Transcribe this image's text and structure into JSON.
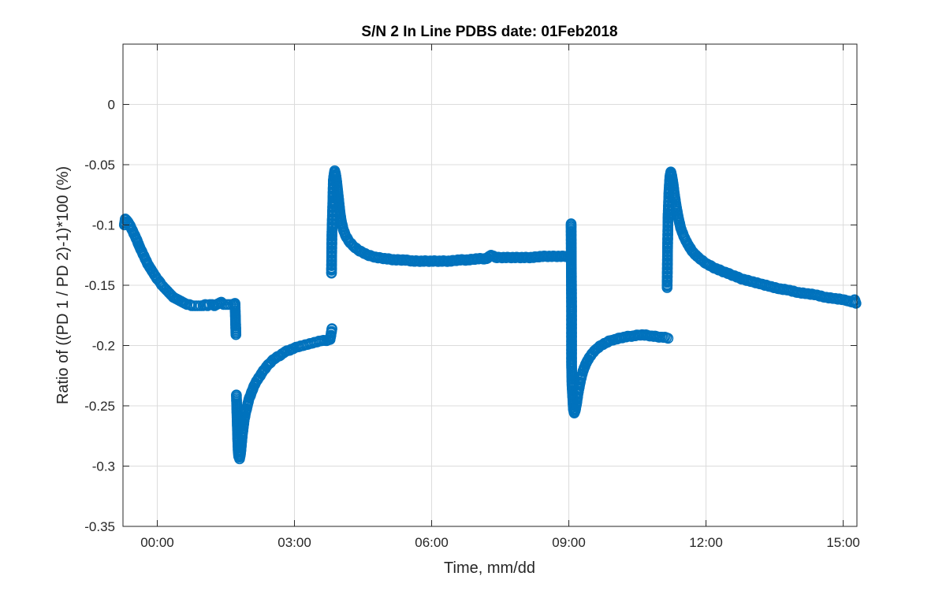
{
  "chart_data": {
    "type": "scatter",
    "title": "S/N 2 In Line PDBS date: 01Feb2018",
    "xlabel": "Time, mm/dd",
    "ylabel": "Ratio of ((PD 1 / PD 2)-1)*100 (%)",
    "xlim_hours": [
      -0.75,
      15.3
    ],
    "ylim": [
      -0.35,
      0.05
    ],
    "x_ticks": [
      {
        "hour": 0,
        "label": "00:00"
      },
      {
        "hour": 3,
        "label": "03:00"
      },
      {
        "hour": 6,
        "label": "06:00"
      },
      {
        "hour": 9,
        "label": "09:00"
      },
      {
        "hour": 12,
        "label": "12:00"
      },
      {
        "hour": 15,
        "label": "15:00"
      }
    ],
    "y_ticks": [
      0,
      -0.05,
      -0.1,
      -0.15,
      -0.2,
      -0.25,
      -0.3,
      -0.35
    ],
    "y_tick_labels": [
      "0",
      "-0.05",
      "-0.1",
      "-0.15",
      "-0.2",
      "-0.25",
      "-0.3",
      "-0.35"
    ],
    "grid": true,
    "marker": "circle-open",
    "color": "#0072BD",
    "series": [
      {
        "values": [
          [
            -0.72,
            -0.1
          ],
          [
            -0.7,
            -0.095
          ],
          [
            -0.65,
            -0.097
          ],
          [
            -0.6,
            -0.1
          ],
          [
            -0.55,
            -0.104
          ],
          [
            -0.5,
            -0.108
          ],
          [
            -0.45,
            -0.112
          ],
          [
            -0.4,
            -0.117
          ],
          [
            -0.35,
            -0.121
          ],
          [
            -0.3,
            -0.125
          ],
          [
            -0.25,
            -0.129
          ],
          [
            -0.2,
            -0.133
          ],
          [
            -0.15,
            -0.136
          ],
          [
            -0.1,
            -0.139
          ],
          [
            -0.05,
            -0.142
          ],
          [
            0,
            -0.145
          ],
          [
            0.05,
            -0.147
          ],
          [
            0.1,
            -0.15
          ],
          [
            0.15,
            -0.152
          ],
          [
            0.2,
            -0.154
          ],
          [
            0.25,
            -0.156
          ],
          [
            0.3,
            -0.158
          ],
          [
            0.35,
            -0.16
          ],
          [
            0.4,
            -0.161
          ],
          [
            0.45,
            -0.162
          ],
          [
            0.5,
            -0.163
          ],
          [
            0.55,
            -0.164
          ],
          [
            0.6,
            -0.165
          ],
          [
            0.65,
            -0.166
          ],
          [
            0.7,
            -0.166
          ],
          [
            0.75,
            -0.167
          ],
          [
            0.8,
            -0.167
          ],
          [
            0.85,
            -0.167
          ],
          [
            0.9,
            -0.167
          ],
          [
            0.95,
            -0.167
          ],
          [
            1.0,
            -0.167
          ],
          [
            1.05,
            -0.166
          ],
          [
            1.1,
            -0.167
          ],
          [
            1.15,
            -0.166
          ],
          [
            1.2,
            -0.166
          ],
          [
            1.25,
            -0.167
          ],
          [
            1.3,
            -0.166
          ],
          [
            1.35,
            -0.165
          ],
          [
            1.4,
            -0.164
          ],
          [
            1.45,
            -0.166
          ],
          [
            1.5,
            -0.166
          ],
          [
            1.55,
            -0.166
          ],
          [
            1.6,
            -0.166
          ],
          [
            1.65,
            -0.166
          ],
          [
            1.7,
            -0.165
          ],
          [
            1.72,
            -0.191
          ]
        ]
      },
      {
        "values": [
          [
            1.73,
            -0.241
          ],
          [
            1.75,
            -0.266
          ],
          [
            1.76,
            -0.279
          ],
          [
            1.77,
            -0.288
          ],
          [
            1.78,
            -0.292
          ],
          [
            1.8,
            -0.294
          ],
          [
            1.82,
            -0.29
          ],
          [
            1.84,
            -0.282
          ],
          [
            1.86,
            -0.274
          ],
          [
            1.88,
            -0.268
          ],
          [
            1.9,
            -0.262
          ],
          [
            1.93,
            -0.256
          ],
          [
            1.97,
            -0.25
          ],
          [
            2.0,
            -0.245
          ],
          [
            2.05,
            -0.24
          ],
          [
            2.1,
            -0.235
          ],
          [
            2.15,
            -0.231
          ],
          [
            2.2,
            -0.228
          ],
          [
            2.3,
            -0.222
          ],
          [
            2.4,
            -0.217
          ],
          [
            2.5,
            -0.213
          ],
          [
            2.6,
            -0.21
          ],
          [
            2.7,
            -0.208
          ],
          [
            2.8,
            -0.205
          ],
          [
            2.9,
            -0.204
          ],
          [
            3.0,
            -0.202
          ],
          [
            3.1,
            -0.201
          ],
          [
            3.2,
            -0.2
          ],
          [
            3.3,
            -0.199
          ],
          [
            3.4,
            -0.198
          ],
          [
            3.5,
            -0.197
          ],
          [
            3.6,
            -0.196
          ],
          [
            3.7,
            -0.196
          ],
          [
            3.78,
            -0.195
          ],
          [
            3.82,
            -0.186
          ]
        ]
      },
      {
        "values": [
          [
            3.81,
            -0.14
          ],
          [
            3.82,
            -0.106
          ],
          [
            3.84,
            -0.08
          ],
          [
            3.85,
            -0.063
          ],
          [
            3.87,
            -0.057
          ],
          [
            3.88,
            -0.055
          ],
          [
            3.9,
            -0.058
          ],
          [
            3.92,
            -0.063
          ],
          [
            3.94,
            -0.07
          ],
          [
            3.96,
            -0.077
          ],
          [
            3.98,
            -0.084
          ],
          [
            4.0,
            -0.091
          ],
          [
            4.03,
            -0.098
          ],
          [
            4.07,
            -0.104
          ],
          [
            4.12,
            -0.109
          ],
          [
            4.2,
            -0.114
          ],
          [
            4.3,
            -0.118
          ],
          [
            4.4,
            -0.121
          ],
          [
            4.5,
            -0.123
          ],
          [
            4.6,
            -0.125
          ],
          [
            4.8,
            -0.127
          ],
          [
            5.0,
            -0.128
          ],
          [
            5.2,
            -0.129
          ],
          [
            5.4,
            -0.129
          ],
          [
            5.6,
            -0.13
          ],
          [
            5.8,
            -0.13
          ],
          [
            6.0,
            -0.13
          ],
          [
            6.2,
            -0.13
          ],
          [
            6.4,
            -0.13
          ],
          [
            6.6,
            -0.129
          ],
          [
            6.8,
            -0.129
          ],
          [
            7.0,
            -0.128
          ],
          [
            7.2,
            -0.128
          ],
          [
            7.3,
            -0.125
          ],
          [
            7.4,
            -0.127
          ],
          [
            7.6,
            -0.127
          ],
          [
            7.8,
            -0.127
          ],
          [
            8.0,
            -0.127
          ],
          [
            8.2,
            -0.127
          ],
          [
            8.4,
            -0.126
          ],
          [
            8.6,
            -0.126
          ],
          [
            8.8,
            -0.126
          ],
          [
            9.0,
            -0.126
          ],
          [
            9.05,
            -0.124
          ]
        ]
      },
      {
        "values": [
          [
            9.05,
            -0.099
          ],
          [
            9.06,
            -0.169
          ],
          [
            9.06,
            -0.216
          ],
          [
            9.07,
            -0.233
          ],
          [
            9.09,
            -0.246
          ],
          [
            9.1,
            -0.253
          ],
          [
            9.12,
            -0.256
          ],
          [
            9.14,
            -0.254
          ],
          [
            9.17,
            -0.248
          ],
          [
            9.2,
            -0.24
          ],
          [
            9.24,
            -0.232
          ],
          [
            9.28,
            -0.225
          ],
          [
            9.33,
            -0.219
          ],
          [
            9.4,
            -0.213
          ],
          [
            9.5,
            -0.207
          ],
          [
            9.6,
            -0.203
          ],
          [
            9.7,
            -0.2
          ],
          [
            9.8,
            -0.198
          ],
          [
            9.9,
            -0.196
          ],
          [
            10.0,
            -0.195
          ],
          [
            10.2,
            -0.193
          ],
          [
            10.4,
            -0.192
          ],
          [
            10.6,
            -0.191
          ],
          [
            10.8,
            -0.192
          ],
          [
            11.0,
            -0.193
          ],
          [
            11.1,
            -0.193
          ],
          [
            11.17,
            -0.194
          ]
        ]
      },
      {
        "values": [
          [
            11.15,
            -0.152
          ],
          [
            11.16,
            -0.117
          ],
          [
            11.17,
            -0.093
          ],
          [
            11.19,
            -0.072
          ],
          [
            11.21,
            -0.06
          ],
          [
            11.23,
            -0.056
          ],
          [
            11.25,
            -0.059
          ],
          [
            11.28,
            -0.066
          ],
          [
            11.31,
            -0.075
          ],
          [
            11.35,
            -0.085
          ],
          [
            11.4,
            -0.095
          ],
          [
            11.45,
            -0.103
          ],
          [
            11.52,
            -0.11
          ],
          [
            11.6,
            -0.116
          ],
          [
            11.7,
            -0.122
          ],
          [
            11.8,
            -0.126
          ],
          [
            11.9,
            -0.129
          ],
          [
            12.0,
            -0.132
          ],
          [
            12.2,
            -0.136
          ],
          [
            12.4,
            -0.139
          ],
          [
            12.6,
            -0.142
          ],
          [
            12.8,
            -0.145
          ],
          [
            13.0,
            -0.147
          ],
          [
            13.2,
            -0.149
          ],
          [
            13.4,
            -0.151
          ],
          [
            13.6,
            -0.153
          ],
          [
            13.8,
            -0.154
          ],
          [
            14.0,
            -0.156
          ],
          [
            14.2,
            -0.157
          ],
          [
            14.4,
            -0.158
          ],
          [
            14.6,
            -0.16
          ],
          [
            14.8,
            -0.161
          ],
          [
            15.0,
            -0.162
          ],
          [
            15.1,
            -0.163
          ],
          [
            15.2,
            -0.164
          ],
          [
            15.25,
            -0.162
          ],
          [
            15.28,
            -0.165
          ]
        ]
      }
    ]
  }
}
